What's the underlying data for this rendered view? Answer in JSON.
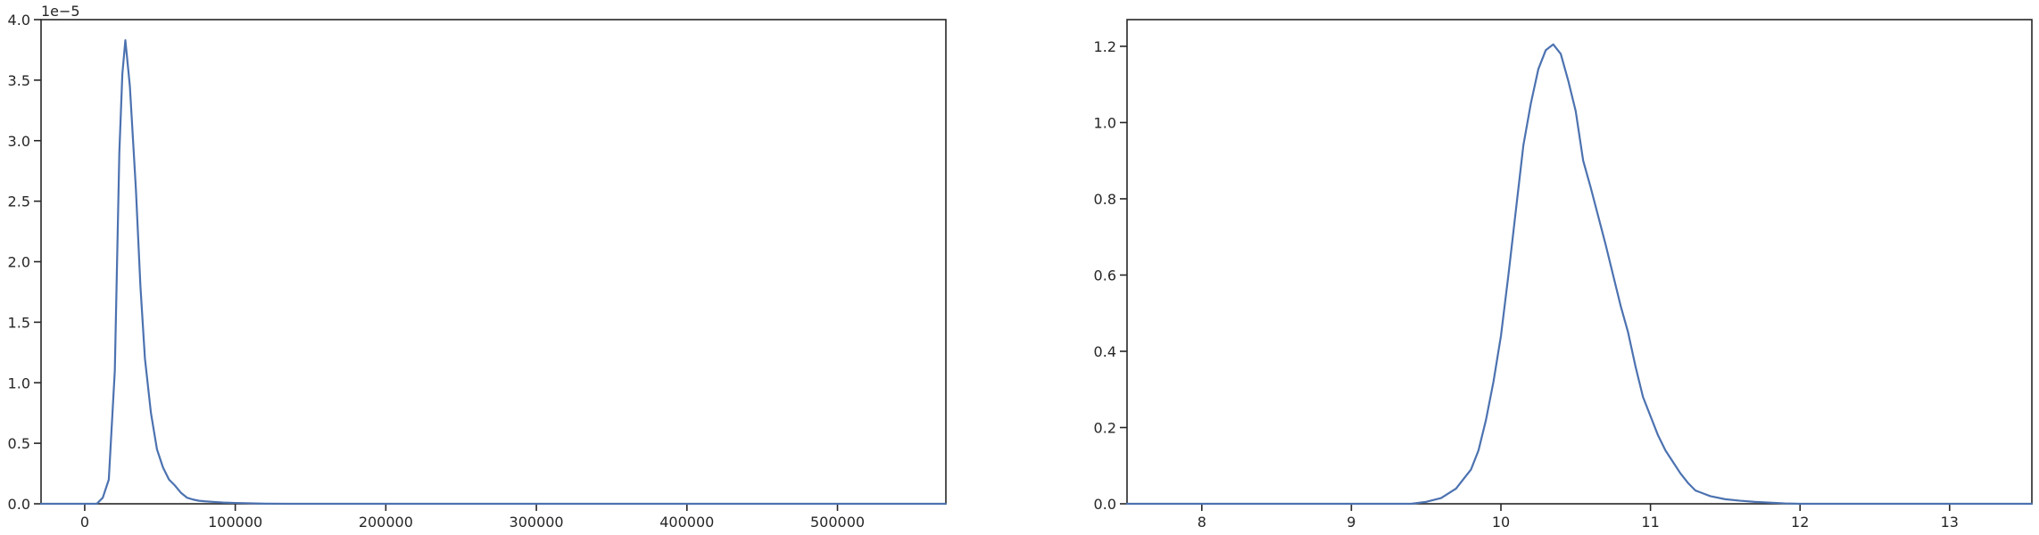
{
  "colors": {
    "line": "#4c72b0",
    "axes": "#262626",
    "background": "#ffffff"
  },
  "chart_data": [
    {
      "type": "line",
      "title": "",
      "xlabel": "",
      "ylabel": "",
      "y_offset_label": "1e−5",
      "xlim": [
        -29000,
        572000
      ],
      "ylim": [
        0,
        4.0
      ],
      "y_scale_factor": 1e-05,
      "grid": false,
      "xticks": [
        0,
        100000,
        200000,
        300000,
        400000,
        500000
      ],
      "xtick_labels": [
        "0",
        "100000",
        "200000",
        "300000",
        "400000",
        "500000"
      ],
      "yticks": [
        0,
        0.5,
        1.0,
        1.5,
        2.0,
        2.5,
        3.0,
        3.5,
        4.0
      ],
      "ytick_labels": [
        "0.0",
        "0.5",
        "1.0",
        "1.5",
        "2.0",
        "2.5",
        "3.0",
        "3.5",
        "4.0"
      ],
      "series": [
        {
          "x": [
            0,
            8000,
            12000,
            16000,
            20000,
            23000,
            25000,
            27000,
            30000,
            34000,
            37000,
            40000,
            44000,
            48000,
            52000,
            56000,
            60000,
            64000,
            68000,
            72000,
            76000,
            80000,
            86000,
            92000,
            100000,
            110000,
            120000,
            135000
          ],
          "y": [
            0,
            0.0,
            0.05,
            0.2,
            1.1,
            2.9,
            3.55,
            3.83,
            3.45,
            2.6,
            1.8,
            1.2,
            0.75,
            0.45,
            0.3,
            0.2,
            0.15,
            0.09,
            0.05,
            0.035,
            0.025,
            0.02,
            0.015,
            0.01,
            0.007,
            0.004,
            0.001,
            0.0
          ]
        }
      ]
    },
    {
      "type": "line",
      "title": "",
      "xlabel": "",
      "ylabel": "",
      "xlim": [
        7.5,
        13.55
      ],
      "ylim": [
        0,
        1.27
      ],
      "grid": false,
      "xticks": [
        8,
        9,
        10,
        11,
        12,
        13
      ],
      "xtick_labels": [
        "8",
        "9",
        "10",
        "11",
        "12",
        "13"
      ],
      "yticks": [
        0.0,
        0.2,
        0.4,
        0.6,
        0.8,
        1.0,
        1.2
      ],
      "ytick_labels": [
        "0.0",
        "0.2",
        "0.4",
        "0.6",
        "0.8",
        "1.0",
        "1.2"
      ],
      "series": [
        {
          "x": [
            9.4,
            9.5,
            9.6,
            9.7,
            9.75,
            9.8,
            9.85,
            9.9,
            9.95,
            10.0,
            10.05,
            10.1,
            10.15,
            10.2,
            10.25,
            10.3,
            10.35,
            10.4,
            10.45,
            10.5,
            10.55,
            10.6,
            10.7,
            10.8,
            10.85,
            10.9,
            10.95,
            11.0,
            11.05,
            11.1,
            11.15,
            11.2,
            11.25,
            11.3,
            11.4,
            11.5,
            11.6,
            11.7,
            11.8,
            11.9,
            12.0
          ],
          "y": [
            0.0,
            0.005,
            0.015,
            0.04,
            0.065,
            0.09,
            0.14,
            0.22,
            0.32,
            0.44,
            0.6,
            0.77,
            0.94,
            1.05,
            1.14,
            1.19,
            1.205,
            1.18,
            1.11,
            1.03,
            0.9,
            0.83,
            0.68,
            0.52,
            0.45,
            0.36,
            0.28,
            0.23,
            0.18,
            0.14,
            0.11,
            0.08,
            0.055,
            0.035,
            0.02,
            0.012,
            0.008,
            0.005,
            0.003,
            0.001,
            0.0
          ]
        }
      ]
    }
  ]
}
